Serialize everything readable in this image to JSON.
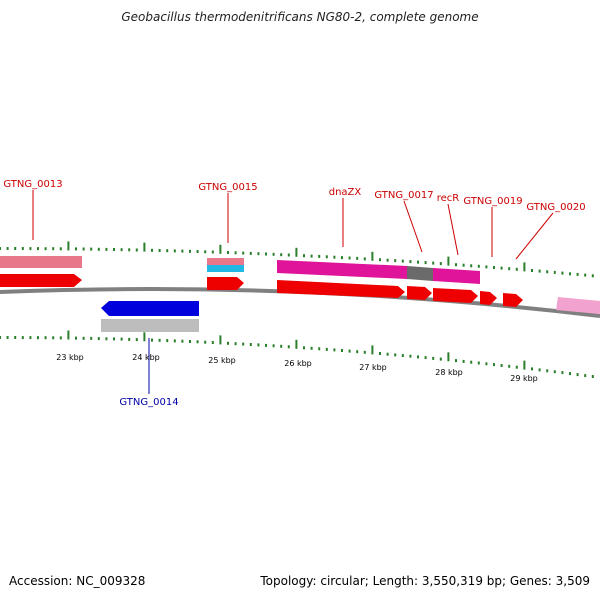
{
  "title": "Geobacillus thermodenitrificans NG80-2, complete genome",
  "accession": "Accession: NC_009328",
  "summary": "Topology: circular; Length: 3,550,319 bp; Genes: 3,509",
  "colors": {
    "label_forward": "#cc0000",
    "label_reverse": "#0000aa",
    "tick": "#2a7f2a",
    "backbone": "#808080",
    "cds_forward": "#ee0000",
    "cds_reverse": "#0000dd",
    "gene_pink": "#e8778a",
    "gene_magenta": "#e0149a",
    "gene_gray": "#6b6b6b",
    "gene_cyan": "#22b8e6",
    "gene_light_gray": "#bdbdbd",
    "gene_light_pink": "#f2a2cf"
  },
  "scale_labels": [
    "23 kbp",
    "24 kbp",
    "25 kbp",
    "26 kbp",
    "27 kbp",
    "28 kbp",
    "29 kbp"
  ],
  "gene_labels": [
    {
      "text": "GTNG_0013",
      "strand": "forward"
    },
    {
      "text": "GTNG_0014",
      "strand": "reverse"
    },
    {
      "text": "GTNG_0015",
      "strand": "forward"
    },
    {
      "text": "dnaZX",
      "strand": "forward"
    },
    {
      "text": "GTNG_0017",
      "strand": "forward"
    },
    {
      "text": "recR",
      "strand": "forward"
    },
    {
      "text": "GTNG_0019",
      "strand": "forward"
    },
    {
      "text": "GTNG_0020",
      "strand": "forward"
    }
  ]
}
